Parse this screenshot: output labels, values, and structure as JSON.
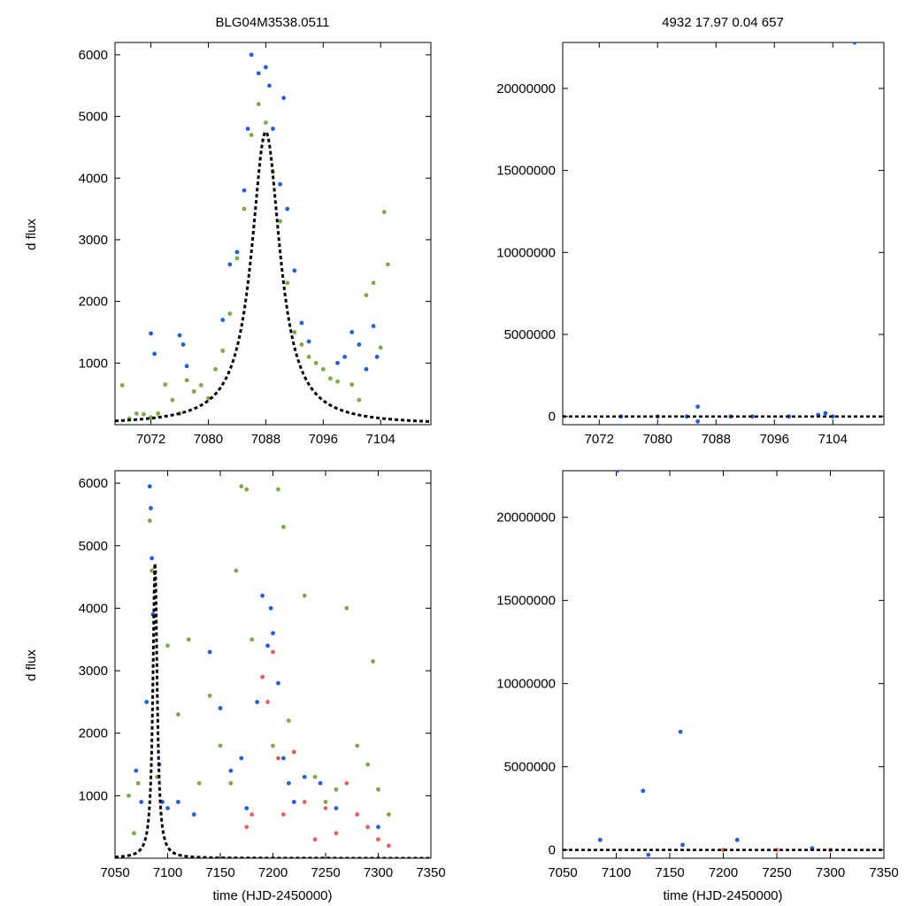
{
  "figure": {
    "title_left": "BLG04M3538.0511",
    "title_right": "4932  17.97  0.04  657",
    "ylabel": "d flux",
    "xlabel": "time (HJD-2450000)"
  },
  "colors": {
    "green": "#7aab44",
    "blue": "#1f5fe0",
    "red": "#e8605e",
    "model": "#000000"
  },
  "chart_data": [
    {
      "id": "top-left",
      "type": "scatter",
      "title": "BLG04M3538.0511",
      "xlabel": "",
      "ylabel": "d flux",
      "xlim": [
        7067,
        7111
      ],
      "ylim": [
        0,
        6200
      ],
      "xticks": [
        7072,
        7080,
        7088,
        7096,
        7104
      ],
      "yticks": [
        1000,
        2000,
        3000,
        4000,
        5000,
        6000
      ],
      "model": {
        "t0": 7088,
        "peak": 4750,
        "halfwidth": 2.4
      },
      "series": [
        {
          "name": "",
          "color": "green",
          "points": [
            [
              7068,
              640
            ],
            [
              7069,
              100
            ],
            [
              7070,
              180
            ],
            [
              7071,
              170
            ],
            [
              7072,
              120
            ],
            [
              7073,
              180
            ],
            [
              7074,
              650
            ],
            [
              7075,
              400
            ],
            [
              7076,
              180
            ],
            [
              7077,
              720
            ],
            [
              7078,
              540
            ],
            [
              7079,
              640
            ],
            [
              7080,
              430
            ],
            [
              7081,
              900
            ],
            [
              7082,
              1200
            ],
            [
              7083,
              1800
            ],
            [
              7084,
              2700
            ],
            [
              7085,
              3500
            ],
            [
              7086,
              4700
            ],
            [
              7087,
              5200
            ],
            [
              7088,
              4900
            ],
            [
              7089,
              4100
            ],
            [
              7090,
              3300
            ],
            [
              7091,
              2300
            ],
            [
              7092,
              1500
            ],
            [
              7093,
              1300
            ],
            [
              7094,
              1100
            ],
            [
              7095,
              1000
            ],
            [
              7096,
              900
            ],
            [
              7097,
              750
            ],
            [
              7098,
              700
            ],
            [
              7100,
              650
            ],
            [
              7101,
              400
            ],
            [
              7102,
              2100
            ],
            [
              7103,
              2300
            ],
            [
              7104,
              1250
            ],
            [
              7105,
              2600
            ],
            [
              7104.5,
              3450
            ]
          ]
        },
        {
          "name": "",
          "color": "blue",
          "points": [
            [
              7072,
              1480
            ],
            [
              7072.5,
              1150
            ],
            [
              7076,
              1450
            ],
            [
              7076.5,
              1300
            ],
            [
              7077,
              950
            ],
            [
              7082,
              1700
            ],
            [
              7083,
              2600
            ],
            [
              7084,
              2800
            ],
            [
              7085,
              3800
            ],
            [
              7085.5,
              4800
            ],
            [
              7086,
              6000
            ],
            [
              7087,
              5700
            ],
            [
              7088,
              5800
            ],
            [
              7088.5,
              5500
            ],
            [
              7089,
              4800
            ],
            [
              7090,
              3900
            ],
            [
              7090.5,
              5300
            ],
            [
              7091,
              3500
            ],
            [
              7092,
              2500
            ],
            [
              7093,
              1650
            ],
            [
              7094,
              1350
            ],
            [
              7098,
              1000
            ],
            [
              7099,
              1100
            ],
            [
              7100,
              1500
            ],
            [
              7101,
              1300
            ],
            [
              7102,
              900
            ],
            [
              7103,
              1600
            ],
            [
              7103.5,
              1100
            ]
          ]
        }
      ]
    },
    {
      "id": "top-right",
      "type": "scatter",
      "title": "4932  17.97  0.04  657",
      "xlabel": "",
      "ylabel": "",
      "xlim": [
        7067,
        7111
      ],
      "ylim": [
        -500000,
        22800000
      ],
      "xticks": [
        7072,
        7080,
        7088,
        7096,
        7104
      ],
      "yticks": [
        0,
        5000000,
        10000000,
        15000000,
        20000000
      ],
      "series": [
        {
          "name": "",
          "color": "blue",
          "points": [
            [
              7067,
              0
            ],
            [
              7075,
              0
            ],
            [
              7080,
              0
            ],
            [
              7084,
              0
            ],
            [
              7085.5,
              600000
            ],
            [
              7085.5,
              -300000
            ],
            [
              7090,
              0
            ],
            [
              7093,
              0
            ],
            [
              7098,
              0
            ],
            [
              7102,
              100000
            ],
            [
              7104,
              0
            ],
            [
              7103,
              200000
            ],
            [
              7107,
              22800000
            ]
          ]
        }
      ]
    },
    {
      "id": "bottom-left",
      "type": "scatter",
      "title": "",
      "xlabel": "time (HJD-2450000)",
      "ylabel": "d flux",
      "xlim": [
        7050,
        7350
      ],
      "ylim": [
        0,
        6200
      ],
      "xticks": [
        7050,
        7100,
        7150,
        7200,
        7250,
        7300,
        7350
      ],
      "yticks": [
        1000,
        2000,
        3000,
        4000,
        5000,
        6000
      ],
      "model": {
        "t0": 7088,
        "peak": 4750,
        "halfwidth": 2.4
      },
      "series": [
        {
          "name": "",
          "color": "green",
          "points": [
            [
              7063,
              1000
            ],
            [
              7068,
              400
            ],
            [
              7072,
              1200
            ],
            [
              7083,
              5400
            ],
            [
              7085,
              4600
            ],
            [
              7090,
              1300
            ],
            [
              7100,
              3400
            ],
            [
              7110,
              2300
            ],
            [
              7120,
              3500
            ],
            [
              7130,
              1200
            ],
            [
              7140,
              2600
            ],
            [
              7150,
              1800
            ],
            [
              7160,
              1200
            ],
            [
              7165,
              4600
            ],
            [
              7170,
              5950
            ],
            [
              7175,
              5900
            ],
            [
              7180,
              3500
            ],
            [
              7190,
              2900
            ],
            [
              7200,
              1800
            ],
            [
              7205,
              5900
            ],
            [
              7210,
              5300
            ],
            [
              7215,
              2200
            ],
            [
              7220,
              1700
            ],
            [
              7230,
              4200
            ],
            [
              7240,
              1300
            ],
            [
              7250,
              900
            ],
            [
              7260,
              1100
            ],
            [
              7270,
              4000
            ],
            [
              7280,
              1800
            ],
            [
              7290,
              1500
            ],
            [
              7295,
              3150
            ],
            [
              7300,
              1100
            ],
            [
              7310,
              700
            ]
          ]
        },
        {
          "name": "",
          "color": "blue",
          "points": [
            [
              7070,
              1400
            ],
            [
              7075,
              900
            ],
            [
              7080,
              2500
            ],
            [
              7083,
              5950
            ],
            [
              7084,
              5600
            ],
            [
              7085,
              4800
            ],
            [
              7086,
              3900
            ],
            [
              7092,
              1500
            ],
            [
              7095,
              900
            ],
            [
              7100,
              800
            ],
            [
              7110,
              900
            ],
            [
              7125,
              700
            ],
            [
              7140,
              3300
            ],
            [
              7150,
              2400
            ],
            [
              7160,
              1400
            ],
            [
              7170,
              1600
            ],
            [
              7175,
              800
            ],
            [
              7185,
              2500
            ],
            [
              7190,
              4200
            ],
            [
              7195,
              3400
            ],
            [
              7198,
              4000
            ],
            [
              7200,
              3600
            ],
            [
              7205,
              2800
            ],
            [
              7210,
              1600
            ],
            [
              7215,
              1200
            ],
            [
              7220,
              900
            ],
            [
              7230,
              1300
            ],
            [
              7245,
              1200
            ],
            [
              7260,
              800
            ],
            [
              7280,
              700
            ],
            [
              7300,
              500
            ]
          ]
        },
        {
          "name": "",
          "color": "red",
          "points": [
            [
              7175,
              500
            ],
            [
              7180,
              700
            ],
            [
              7190,
              2900
            ],
            [
              7195,
              2500
            ],
            [
              7200,
              3300
            ],
            [
              7205,
              1600
            ],
            [
              7210,
              700
            ],
            [
              7220,
              1700
            ],
            [
              7230,
              900
            ],
            [
              7240,
              300
            ],
            [
              7250,
              800
            ],
            [
              7260,
              400
            ],
            [
              7270,
              1200
            ],
            [
              7280,
              700
            ],
            [
              7290,
              500
            ],
            [
              7300,
              300
            ],
            [
              7310,
              200
            ]
          ]
        }
      ]
    },
    {
      "id": "bottom-right",
      "type": "scatter",
      "title": "",
      "xlabel": "time (HJD-2450000)",
      "ylabel": "",
      "xlim": [
        7050,
        7350
      ],
      "ylim": [
        -500000,
        22800000
      ],
      "xticks": [
        7050,
        7100,
        7150,
        7200,
        7250,
        7300,
        7350
      ],
      "yticks": [
        0,
        5000000,
        10000000,
        15000000,
        20000000
      ],
      "series": [
        {
          "name": "",
          "color": "blue",
          "points": [
            [
              7085,
              600000
            ],
            [
              7101,
              22800000
            ],
            [
              7125,
              3550000
            ],
            [
              7130,
              -300000
            ],
            [
              7160,
              7100000
            ],
            [
              7160,
              -600000
            ],
            [
              7162,
              300000
            ],
            [
              7213,
              600000
            ],
            [
              7283,
              100000
            ]
          ]
        },
        {
          "name": "",
          "color": "red",
          "points": [
            [
              7200,
              0
            ],
            [
              7250,
              0
            ],
            [
              7300,
              0
            ]
          ]
        }
      ]
    }
  ]
}
